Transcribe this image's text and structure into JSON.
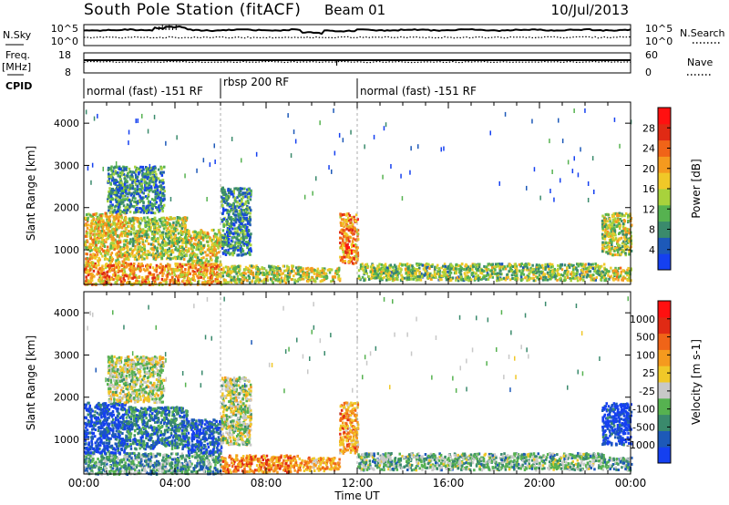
{
  "header": {
    "station": "South Pole Station (fitACF)",
    "beam": "Beam 01",
    "date": "10/Jul/2013"
  },
  "top_panels": {
    "nsky_label": "N.Sky",
    "nsky_ticks": [
      "10^5",
      "10^0"
    ],
    "nsearch_label": "N.Search",
    "nsearch_ticks": [
      "10^5",
      "10^0"
    ],
    "freq_label": "Freq.",
    "freq_unit": "[MHz]",
    "freq_ticks": [
      "18",
      "8"
    ],
    "nave_label": "Nave",
    "nave_ticks": [
      "60",
      "0"
    ],
    "cpid_label": "CPID",
    "cpid_segments": [
      {
        "label": "normal (fast) -151 RF",
        "start": 0,
        "end": 6
      },
      {
        "label": "rbsp 200 RF",
        "start": 6,
        "end": 12
      },
      {
        "label": "normal (fast) -151 RF",
        "start": 12,
        "end": 24
      }
    ]
  },
  "chart_data": [
    {
      "type": "heatmap",
      "title": "",
      "xlabel": "Time UT",
      "ylabel": "Slant Range [km]",
      "xlim": [
        0,
        24
      ],
      "ylim": [
        180,
        4500
      ],
      "x_ticks": [
        "00:00",
        "04:00",
        "08:00",
        "12:00",
        "16:00",
        "20:00",
        "00:00"
      ],
      "y_ticks": [
        1000,
        2000,
        3000,
        4000
      ],
      "colorbar": {
        "label": "Power [dB]",
        "ticks": [
          4,
          8,
          12,
          16,
          20,
          24,
          28
        ],
        "range": [
          0,
          32
        ],
        "colors": [
          "#1540f0",
          "#1d59b8",
          "#3a8a6c",
          "#56b250",
          "#a8d23c",
          "#f0c828",
          "#f59a1e",
          "#f06418",
          "#e02a14",
          "#ff1010"
        ]
      },
      "regions": [
        {
          "x": [
            0.0,
            6.0
          ],
          "y": [
            200,
            700
          ],
          "level": 0.65
        },
        {
          "x": [
            0.0,
            1.8
          ],
          "y": [
            700,
            1900
          ],
          "level": 0.55
        },
        {
          "x": [
            1.8,
            4.5
          ],
          "y": [
            800,
            1800
          ],
          "level": 0.45
        },
        {
          "x": [
            4.5,
            6.0
          ],
          "y": [
            700,
            1500
          ],
          "level": 0.5
        },
        {
          "x": [
            1.0,
            3.5
          ],
          "y": [
            1900,
            3000
          ],
          "level": 0.25
        },
        {
          "x": [
            6.0,
            7.3
          ],
          "y": [
            900,
            2500
          ],
          "level": 0.25
        },
        {
          "x": [
            6.0,
            9.5
          ],
          "y": [
            250,
            650
          ],
          "level": 0.45
        },
        {
          "x": [
            9.5,
            11.2
          ],
          "y": [
            280,
            600
          ],
          "level": 0.5
        },
        {
          "x": [
            11.2,
            12.0
          ],
          "y": [
            700,
            1900
          ],
          "level": 0.7
        },
        {
          "x": [
            12.0,
            22.8
          ],
          "y": [
            300,
            700
          ],
          "level": 0.4
        },
        {
          "x": [
            22.8,
            24.0
          ],
          "y": [
            300,
            600
          ],
          "level": 0.5
        },
        {
          "x": [
            22.7,
            24.0
          ],
          "y": [
            900,
            1900
          ],
          "level": 0.45
        }
      ]
    },
    {
      "type": "heatmap",
      "title": "",
      "xlabel": "Time UT",
      "ylabel": "Slant Range [km]",
      "xlim": [
        0,
        24
      ],
      "ylim": [
        180,
        4500
      ],
      "x_ticks": [
        "00:00",
        "04:00",
        "08:00",
        "12:00",
        "16:00",
        "20:00",
        "00:00"
      ],
      "y_ticks": [
        1000,
        2000,
        3000,
        4000
      ],
      "colorbar": {
        "label": "Velocity [m s-1]",
        "ticks": [
          "1000",
          "500",
          "100",
          "25",
          "-25",
          "-100",
          "-500",
          "-1000"
        ],
        "colors": [
          "#1540f0",
          "#1d59b8",
          "#3a8a6c",
          "#56b250",
          "#c8c8c8",
          "#f0c828",
          "#f59a1e",
          "#f06418",
          "#e02a14",
          "#ff1010"
        ]
      },
      "regions": [
        {
          "x": [
            0.0,
            6.0
          ],
          "y": [
            200,
            700
          ],
          "level": 0.3
        },
        {
          "x": [
            0.0,
            1.8
          ],
          "y": [
            700,
            1900
          ],
          "level": 0.08
        },
        {
          "x": [
            1.8,
            4.5
          ],
          "y": [
            800,
            1800
          ],
          "level": 0.22
        },
        {
          "x": [
            4.5,
            6.0
          ],
          "y": [
            700,
            1500
          ],
          "level": 0.12
        },
        {
          "x": [
            1.0,
            3.5
          ],
          "y": [
            1900,
            3000
          ],
          "level": 0.45
        },
        {
          "x": [
            6.0,
            7.3
          ],
          "y": [
            900,
            2500
          ],
          "level": 0.45
        },
        {
          "x": [
            6.0,
            9.5
          ],
          "y": [
            250,
            650
          ],
          "level": 0.7
        },
        {
          "x": [
            9.5,
            11.2
          ],
          "y": [
            280,
            600
          ],
          "level": 0.65
        },
        {
          "x": [
            11.2,
            12.0
          ],
          "y": [
            700,
            1900
          ],
          "level": 0.65
        },
        {
          "x": [
            12.0,
            22.8
          ],
          "y": [
            300,
            700
          ],
          "level": 0.35
        },
        {
          "x": [
            22.8,
            24.0
          ],
          "y": [
            300,
            600
          ],
          "level": 0.3
        },
        {
          "x": [
            22.7,
            24.0
          ],
          "y": [
            900,
            1900
          ],
          "level": 0.05
        }
      ]
    }
  ]
}
